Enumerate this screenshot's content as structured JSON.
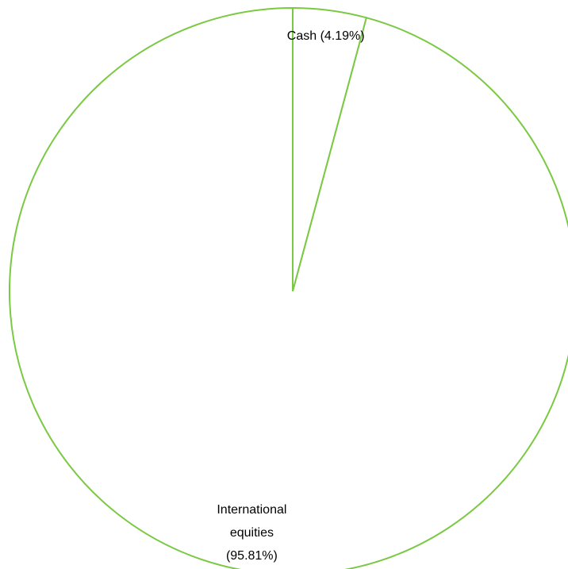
{
  "chart_data": {
    "type": "pie",
    "title": "",
    "slices": [
      {
        "category": "Cash",
        "value": 4.19,
        "label_lines": [
          "Cash (4.19%)"
        ],
        "color": "#7AC943"
      },
      {
        "category": "International equities",
        "value": 95.81,
        "label_lines": [
          "International",
          "equities",
          "(95.81%)"
        ],
        "color": "#7AC943"
      }
    ],
    "start_angle_deg": 0,
    "direction": "clockwise",
    "legend": "none",
    "slice_fill": "#FFFFFF",
    "outline_color": "#7AC943"
  }
}
